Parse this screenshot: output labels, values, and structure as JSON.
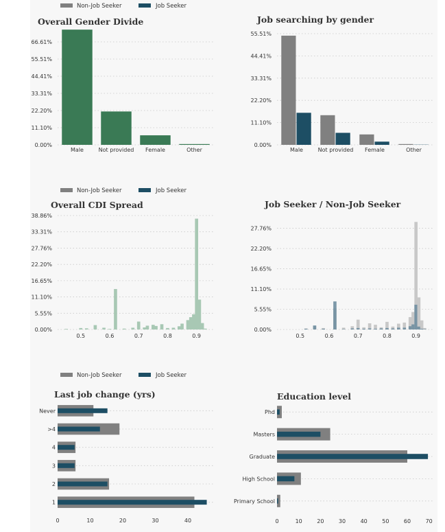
{
  "colors": {
    "non_job_seeker": "#808080",
    "job_seeker": "#1d4e64",
    "overall_green": "#3a7a55",
    "overall_green_light": "#a8c8b4",
    "grey_light": "#c8c8c8",
    "blue_light": "#6f8ea0"
  },
  "legends": [
    {
      "entries": [
        "Non-Job Seeker",
        "Job Seeker"
      ]
    },
    {
      "entries": [
        "Non-Job Seeker",
        "Job Seeker"
      ]
    },
    {
      "entries": [
        "Non-Job Seeker",
        "Job Seeker"
      ]
    }
  ],
  "chart_data": [
    {
      "id": "overall-gender",
      "type": "bar",
      "title": "Overall Gender Divide",
      "categories": [
        "Male",
        "Not provided",
        "Female",
        "Other"
      ],
      "values": [
        72.5,
        21.0,
        6.0,
        0.5
      ],
      "ytick_labels": [
        "0.00%",
        "11.10%",
        "22.20%",
        "33.31%",
        "44.41%",
        "55.51%",
        "66.61%"
      ],
      "ylim": [
        0,
        73
      ]
    },
    {
      "id": "job-search-gender",
      "type": "bar",
      "title": "Job searching by gender",
      "categories": [
        "Male",
        "Not provided",
        "Female",
        "Other"
      ],
      "series": [
        {
          "name": "Non-Job Seeker",
          "values": [
            54.5,
            14.8,
            5.2,
            0.4
          ]
        },
        {
          "name": "Job Seeker",
          "values": [
            16.0,
            6.0,
            1.6,
            0.1
          ]
        }
      ],
      "ytick_labels": [
        "0.00%",
        "11.10%",
        "22.20%",
        "33.31%",
        "44.41%",
        "55.51%"
      ],
      "ylim": [
        0,
        55.51
      ]
    },
    {
      "id": "overall-cdi",
      "type": "bar",
      "title": "Overall CDI Spread",
      "x": [
        0.45,
        0.5,
        0.52,
        0.55,
        0.58,
        0.6,
        0.62,
        0.65,
        0.68,
        0.7,
        0.72,
        0.73,
        0.75,
        0.76,
        0.78,
        0.8,
        0.82,
        0.84,
        0.85,
        0.87,
        0.88,
        0.89,
        0.9,
        0.91,
        0.92,
        0.93
      ],
      "values": [
        0.2,
        0.5,
        0.4,
        1.5,
        0.6,
        0.2,
        13.8,
        0.3,
        0.6,
        2.7,
        0.7,
        1.3,
        1.6,
        1.2,
        1.8,
        0.5,
        0.6,
        1.1,
        2.0,
        3.2,
        4.2,
        5.2,
        37.8,
        10.2,
        2.2,
        0.3
      ],
      "xtick_labels": [
        "0.5",
        "0.6",
        "0.7",
        "0.8",
        "0.9"
      ],
      "xticks": [
        0.5,
        0.6,
        0.7,
        0.8,
        0.9
      ],
      "ytick_labels": [
        "0.00%",
        "5.55%",
        "11.10%",
        "16.65%",
        "22.20%",
        "27.76%",
        "33.31%",
        "38.86%"
      ],
      "xlim": [
        0.42,
        0.96
      ],
      "ylim": [
        0,
        38.86
      ]
    },
    {
      "id": "seeker-cdi",
      "type": "bar",
      "title": "Job Seeker / Non-Job Seeker",
      "x": [
        0.52,
        0.55,
        0.58,
        0.62,
        0.65,
        0.68,
        0.7,
        0.72,
        0.74,
        0.76,
        0.78,
        0.8,
        0.82,
        0.84,
        0.86,
        0.88,
        0.89,
        0.9,
        0.91,
        0.92,
        0.93
      ],
      "series": [
        {
          "name": "Non-Job Seeker",
          "values": [
            0.3,
            0.9,
            0.4,
            5.8,
            0.5,
            0.9,
            2.7,
            0.6,
            1.7,
            1.3,
            0.6,
            2.1,
            0.8,
            1.6,
            1.9,
            3.4,
            4.8,
            29.5,
            8.8,
            2.5,
            0.4
          ]
        },
        {
          "name": "Job Seeker",
          "values": [
            0.2,
            1.1,
            0.2,
            7.7,
            0.1,
            0.3,
            0.4,
            0.2,
            0.3,
            0.2,
            0.3,
            0.4,
            0.3,
            0.5,
            0.5,
            0.9,
            1.4,
            6.8,
            0.8,
            0.2,
            0.1
          ]
        }
      ],
      "xtick_labels": [
        "0.5",
        "0.6",
        "0.7",
        "0.8",
        "0.9"
      ],
      "xticks": [
        0.5,
        0.6,
        0.7,
        0.8,
        0.9
      ],
      "ytick_labels": [
        "0.00%",
        "5.55%",
        "11.10%",
        "16.65%",
        "22.20%",
        "27.76%"
      ],
      "xlim": [
        0.42,
        0.96
      ],
      "ylim": [
        0,
        30.5
      ]
    },
    {
      "id": "last-job-change",
      "type": "bar",
      "orientation": "horizontal",
      "title": "Last job change (yrs)",
      "categories": [
        "Never",
        ">4",
        "4",
        "3",
        "2",
        "1"
      ],
      "series": [
        {
          "name": "Non-Job Seeker",
          "values": [
            11,
            19,
            5.5,
            5.5,
            15.8,
            42
          ]
        },
        {
          "name": "Job Seeker",
          "values": [
            15.3,
            13,
            5.2,
            5.2,
            15.3,
            45.8
          ]
        }
      ],
      "xtick_labels": [
        "0",
        "10",
        "20",
        "30",
        "40"
      ],
      "xticks": [
        0,
        10,
        20,
        30,
        40
      ],
      "xlim": [
        0,
        48
      ]
    },
    {
      "id": "education-level",
      "type": "bar",
      "orientation": "horizontal",
      "title": "Education level",
      "categories": [
        "Phd",
        "Masters",
        "Graduate",
        "High School",
        "Primary School"
      ],
      "series": [
        {
          "name": "Non-Job Seeker",
          "values": [
            2.2,
            24.5,
            60,
            11,
            1.5
          ]
        },
        {
          "name": "Job Seeker",
          "values": [
            1.2,
            20,
            69.5,
            8,
            0.5
          ]
        }
      ],
      "xtick_labels": [
        "0",
        "10",
        "20",
        "30",
        "40",
        "50",
        "60",
        "70"
      ],
      "xticks": [
        0,
        10,
        20,
        30,
        40,
        50,
        60,
        70
      ],
      "xlim": [
        0,
        72
      ]
    }
  ]
}
